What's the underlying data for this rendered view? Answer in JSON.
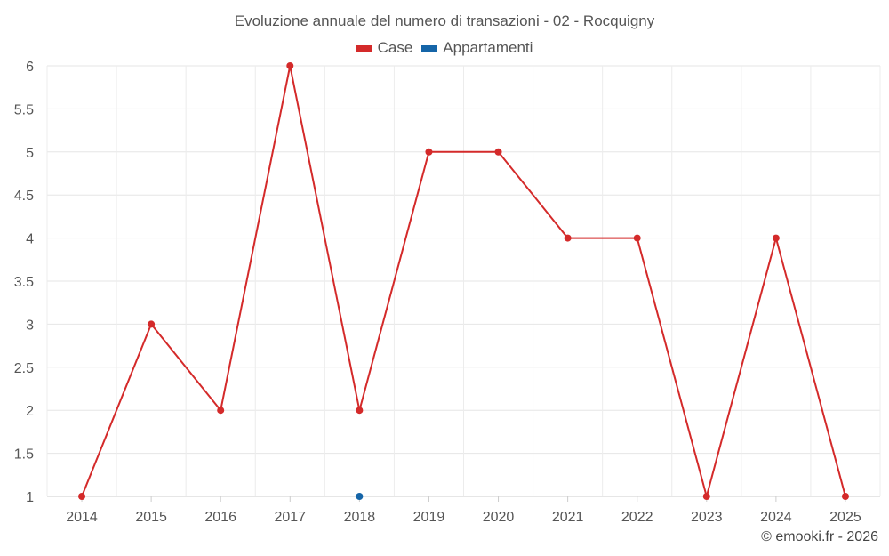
{
  "chart_data": {
    "type": "line",
    "title": "Evoluzione annuale del numero di transazioni - 02 - Rocquigny",
    "x": [
      "2014",
      "2015",
      "2016",
      "2017",
      "2018",
      "2019",
      "2020",
      "2021",
      "2022",
      "2023",
      "2024",
      "2025"
    ],
    "yticks": [
      "1",
      "1.5",
      "2",
      "2.5",
      "3",
      "3.5",
      "4",
      "4.5",
      "5",
      "5.5",
      "6"
    ],
    "ylim": [
      1,
      6
    ],
    "grid": true,
    "legend_position": "top-center",
    "series": [
      {
        "name": "Case",
        "color": "#d42a2a",
        "values": [
          1,
          3,
          2,
          6,
          2,
          5,
          5,
          4,
          4,
          1,
          4,
          1
        ]
      },
      {
        "name": "Appartamenti",
        "color": "#1565a8",
        "values": [
          null,
          null,
          null,
          null,
          1,
          null,
          null,
          null,
          null,
          null,
          null,
          null
        ]
      }
    ]
  },
  "footer": {
    "credit": "© emooki.fr - 2026"
  }
}
